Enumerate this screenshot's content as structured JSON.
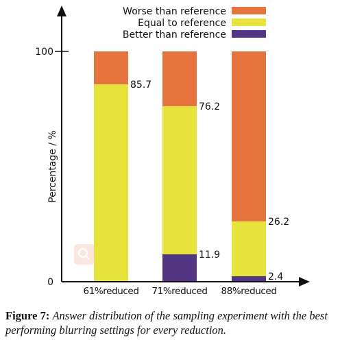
{
  "chart_data": {
    "type": "bar",
    "stacked": true,
    "categories": [
      "61%reduced",
      "71%reduced",
      "88%reduced"
    ],
    "series": [
      {
        "name": "Better than reference",
        "color": "#533683",
        "values": [
          0,
          11.9,
          2.4
        ]
      },
      {
        "name": "Equal to reference",
        "color": "#e6e33c",
        "values": [
          85.7,
          64.3,
          23.8
        ]
      },
      {
        "name": "Worse than reference",
        "color": "#e5743e",
        "values": [
          14.3,
          23.8,
          73.8
        ]
      }
    ],
    "cumulative_labels": [
      {
        "category": "61%reduced",
        "value": 85.7,
        "text": "85.7"
      },
      {
        "category": "71%reduced",
        "value": 76.2,
        "text": "76.2"
      },
      {
        "category": "71%reduced",
        "value": 11.9,
        "text": "11.9"
      },
      {
        "category": "88%reduced",
        "value": 26.2,
        "text": "26.2"
      },
      {
        "category": "88%reduced",
        "value": 2.4,
        "text": "2.4"
      }
    ],
    "yticks": [
      {
        "value": 0,
        "label": "0"
      },
      {
        "value": 100,
        "label": "100"
      }
    ],
    "ylabel": "Percentage / %",
    "xlabel": "",
    "ylim": [
      0,
      100
    ],
    "legend_position": "top-right",
    "grid": false
  },
  "caption": {
    "label": "Figure 7:",
    "text": "Answer distribution of the sampling experiment with the best performing blurring settings for every reduction."
  },
  "icons": {
    "watermark": "magnifier-icon"
  }
}
